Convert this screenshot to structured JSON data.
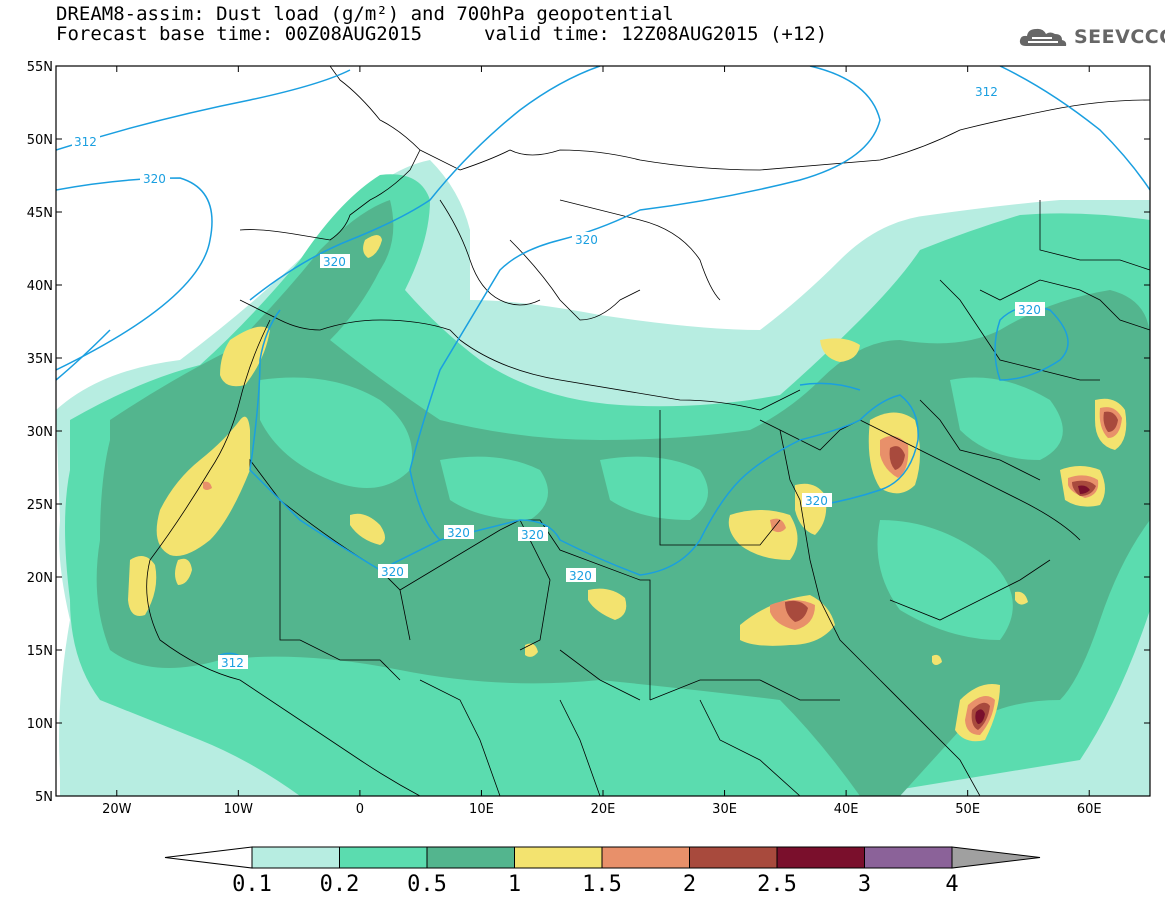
{
  "header": {
    "line1": "DREAM8-assim: Dust load (g/m²) and 700hPa geopotential",
    "line2": "Forecast base time: 00Z08AUG2015",
    "valid": "valid time: 12Z08AUG2015 (+12)"
  },
  "logo": {
    "text": "SEEVCCC",
    "icon": "cloud-icon"
  },
  "axes": {
    "lat_labels": [
      "55N",
      "50N",
      "45N",
      "40N",
      "35N",
      "30N",
      "25N",
      "20N",
      "15N",
      "10N",
      "5N"
    ],
    "lon_labels": [
      "20W",
      "10W",
      "0",
      "10E",
      "20E",
      "30E",
      "40E",
      "50E",
      "60E"
    ],
    "lat_range": [
      5,
      55
    ],
    "lon_range": [
      -25,
      65
    ]
  },
  "contour_labels": [
    "312",
    "320",
    "320",
    "320",
    "320",
    "320",
    "320",
    "320",
    "312",
    "320",
    "312",
    "320"
  ],
  "colorbar": {
    "ticks": [
      "0.1",
      "0.2",
      "0.5",
      "1",
      "1.5",
      "2",
      "2.5",
      "3",
      "4"
    ],
    "colors": [
      "#ffffff",
      "#b7ede1",
      "#5bdcaf",
      "#53b58e",
      "#f3e36f",
      "#e8906a",
      "#a84a3d",
      "#7a0f2c",
      "#8b6299",
      "#a0a0a0"
    ]
  },
  "colors": {
    "contour": "#1a9fe0",
    "border": "#000000",
    "level_0_1": "#b7ede1",
    "level_0_2": "#5bdcaf",
    "level_0_5": "#53b58e",
    "level_1": "#f3e36f",
    "level_1_5": "#e8906a",
    "level_2": "#a84a3d",
    "level_2_5": "#7a0f2c"
  }
}
